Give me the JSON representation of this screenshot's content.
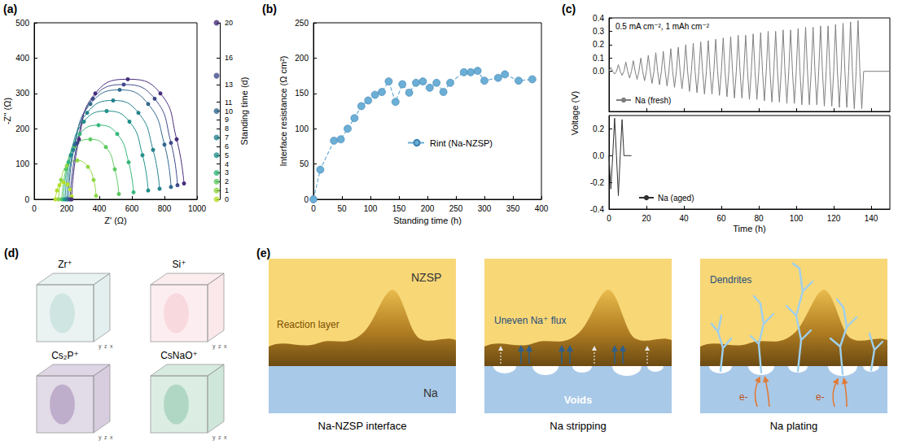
{
  "chart_data": [
    {
      "letter": "(a)",
      "type": "line",
      "x_label": "Z' (Ω)",
      "y_label": "-Z'' (Ω)",
      "z_label": "Standing time (d)",
      "xlim": [
        0,
        1000
      ],
      "xticks": [
        0,
        200,
        400,
        600,
        800,
        1000
      ],
      "ylim": [
        0,
        500
      ],
      "yticks": [
        0,
        100,
        200,
        300,
        400,
        500
      ],
      "zlim": [
        0,
        20
      ],
      "zticks": [
        0,
        1,
        2,
        3,
        4,
        5,
        6,
        7,
        8,
        9,
        10,
        11,
        13,
        16,
        20
      ],
      "marker": "circle",
      "series": [
        {
          "standing_time": 0,
          "color": "#b5de2b",
          "x": [
            130,
            140,
            155,
            180,
            205,
            220,
            230
          ],
          "values": [
            0,
            25,
            40,
            48,
            42,
            28,
            8
          ]
        },
        {
          "standing_time": 1,
          "color": "#8fd744",
          "x": [
            150,
            165,
            200,
            265,
            330,
            365,
            380
          ],
          "values": [
            0,
            55,
            95,
            110,
            92,
            55,
            10
          ]
        },
        {
          "standing_time": 2,
          "color": "#5ec962",
          "x": [
            170,
            195,
            250,
            345,
            440,
            495,
            520
          ],
          "values": [
            0,
            85,
            150,
            170,
            148,
            85,
            15
          ]
        },
        {
          "standing_time": 3,
          "color": "#35b779",
          "x": [
            180,
            210,
            280,
            395,
            510,
            580,
            610
          ],
          "values": [
            0,
            105,
            185,
            210,
            185,
            105,
            20
          ]
        },
        {
          "standing_time": 5,
          "color": "#21918c",
          "x": [
            190,
            225,
            305,
            445,
            585,
            665,
            700
          ],
          "values": [
            0,
            125,
            220,
            250,
            220,
            125,
            25
          ]
        },
        {
          "standing_time": 7,
          "color": "#26828e",
          "x": [
            200,
            240,
            325,
            485,
            640,
            730,
            770
          ],
          "values": [
            0,
            140,
            245,
            280,
            245,
            140,
            30
          ]
        },
        {
          "standing_time": 10,
          "color": "#31688e",
          "x": [
            210,
            250,
            345,
            525,
            700,
            800,
            840
          ],
          "values": [
            0,
            155,
            270,
            310,
            270,
            155,
            35
          ]
        },
        {
          "standing_time": 14,
          "color": "#3e4989",
          "x": [
            220,
            265,
            360,
            550,
            740,
            840,
            880
          ],
          "values": [
            0,
            160,
            285,
            325,
            285,
            160,
            40
          ]
        },
        {
          "standing_time": 20,
          "color": "#472d7b",
          "x": [
            230,
            275,
            375,
            575,
            775,
            875,
            920
          ],
          "values": [
            0,
            170,
            300,
            340,
            300,
            170,
            45
          ]
        }
      ]
    },
    {
      "letter": "(b)",
      "type": "line",
      "x_label": "Standing time (h)",
      "y_label": "Interface resistance (Ω cm²)",
      "xlim": [
        0,
        400
      ],
      "xticks": [
        0,
        50,
        100,
        150,
        200,
        250,
        300,
        350,
        400
      ],
      "ylim": [
        0,
        250
      ],
      "yticks": [
        0,
        50,
        100,
        150,
        200,
        250
      ],
      "marker": "circle",
      "line_style": "dashed",
      "legend": "lower right",
      "series": [
        {
          "name": "Rint (Na-NZSP)",
          "color": "#6baed6",
          "x": [
            0,
            12,
            36,
            48,
            60,
            72,
            84,
            96,
            108,
            120,
            132,
            144,
            156,
            168,
            180,
            192,
            204,
            216,
            228,
            240,
            264,
            276,
            288,
            300,
            324,
            336,
            360,
            384
          ],
          "values": [
            0,
            42,
            83,
            85,
            100,
            115,
            132,
            140,
            148,
            152,
            167,
            138,
            163,
            151,
            165,
            167,
            158,
            165,
            152,
            165,
            180,
            180,
            182,
            168,
            172,
            177,
            168,
            170
          ]
        }
      ]
    },
    {
      "letter": "(c)",
      "type": "line",
      "x_label": "Time (h)",
      "y_label": "Voltage (V)",
      "annotation": "0.5 mA cm⁻², 1 mAh cm⁻²",
      "xlim": [
        0,
        150
      ],
      "xticks": [
        0,
        20,
        40,
        60,
        80,
        100,
        120,
        140
      ],
      "legend": "lower left",
      "panels": [
        {
          "ylim": [
            -0.3,
            0.4
          ],
          "yticks": [
            {
              "value": 0,
              "label": "0.0"
            },
            0.1,
            0.2,
            0.3,
            0.4
          ],
          "tick_labels": "y",
          "series": [
            {
              "name": "Na (fresh)",
              "color": "#7f7f7f",
              "x": [
                0,
                1,
                2,
                3,
                4,
                5,
                6,
                7,
                8,
                9,
                10,
                11,
                12,
                13,
                14,
                15,
                16,
                17,
                18,
                19,
                20,
                21,
                22,
                23,
                24,
                25,
                26,
                27,
                28,
                29,
                30,
                31,
                32,
                33,
                34,
                35,
                36,
                37,
                38,
                39,
                40,
                41,
                42,
                43,
                44,
                45,
                46,
                47,
                48,
                49,
                50,
                51,
                52,
                53,
                54,
                55,
                56,
                57,
                58,
                59,
                60,
                61,
                62,
                63,
                64,
                65,
                66,
                67,
                68,
                69,
                70,
                71,
                72,
                73,
                74,
                75,
                76,
                77,
                78,
                79,
                80,
                81,
                82,
                83,
                84,
                85,
                86,
                87,
                88,
                89,
                90,
                91,
                92,
                93,
                94,
                95,
                96,
                97,
                98,
                99,
                100,
                101,
                102,
                103,
                104,
                105,
                106,
                107,
                108,
                109,
                110,
                111,
                112,
                113,
                114,
                115,
                116,
                117,
                118,
                119,
                120,
                121,
                122,
                123,
                124,
                125,
                126,
                127,
                128,
                129,
                130,
                131,
                132,
                133,
                134,
                135,
                136,
                140,
                150
              ],
              "values": [
                0,
                0.03,
                0,
                -0.02,
                0,
                0.05,
                0,
                -0.03,
                0,
                0.07,
                0,
                -0.05,
                0,
                0.08,
                0,
                -0.06,
                0,
                0.1,
                0,
                -0.07,
                0,
                0.12,
                0,
                -0.09,
                0,
                0.14,
                0,
                -0.1,
                0,
                0.15,
                0,
                -0.11,
                0,
                0.17,
                0,
                -0.12,
                0,
                0.18,
                0,
                -0.13,
                0,
                0.2,
                0,
                -0.15,
                0,
                0.21,
                0,
                -0.16,
                0,
                0.22,
                0,
                -0.17,
                0,
                0.23,
                0,
                -0.17,
                0,
                0.24,
                0,
                -0.18,
                0,
                0.25,
                0,
                -0.19,
                0,
                0.26,
                0,
                -0.2,
                0,
                0.27,
                0,
                -0.2,
                0,
                0.27,
                0,
                -0.21,
                0,
                0.28,
                0,
                -0.21,
                0,
                0.29,
                0,
                -0.22,
                0,
                0.3,
                0,
                -0.23,
                0,
                0.3,
                0,
                -0.23,
                0,
                0.31,
                0,
                -0.24,
                0,
                0.31,
                0,
                -0.24,
                0,
                0.32,
                0,
                -0.25,
                0,
                0.33,
                0,
                -0.25,
                0,
                0.33,
                0,
                -0.25,
                0,
                0.34,
                0,
                -0.26,
                0,
                0.34,
                0,
                -0.26,
                0,
                0.35,
                0,
                -0.27,
                0,
                0.36,
                0,
                -0.27,
                0,
                0.37,
                0,
                -0.28,
                0,
                0.38,
                0,
                -0.28,
                0,
                0,
                0
              ]
            }
          ]
        },
        {
          "ylim": [
            -0.4,
            0.3
          ],
          "yticks": [
            -0.4,
            -0.2,
            {
              "value": 0,
              "label": "0.0"
            },
            0.2
          ],
          "series": [
            {
              "name": "Na (aged)",
              "color": "#303030",
              "x": [
                0,
                1,
                2,
                3,
                4,
                5,
                6,
                7,
                8,
                12
              ],
              "values": [
                0,
                -0.25,
                0,
                0.28,
                0,
                -0.3,
                0,
                0.27,
                0,
                0
              ]
            }
          ]
        }
      ]
    }
  ],
  "tof_sims": {
    "letter": "(d)",
    "axis_labels": [
      "y",
      "z",
      "x"
    ],
    "cubes": [
      {
        "label": "Zr⁺",
        "color": "#9fcac6"
      },
      {
        "label": "Si⁺",
        "color": "#f0b3bc"
      },
      {
        "label": "Cs₂P⁺",
        "color": "#7a5a96"
      },
      {
        "label": "CsNaO⁺",
        "color": "#5fae86"
      }
    ]
  },
  "schematic": {
    "letter": "(e)",
    "panels": [
      {
        "caption": "Na-NZSP interface",
        "top_label": "NZSP",
        "layer_label": "Reaction layer",
        "bottom_label": "Na"
      },
      {
        "caption": "Na stripping",
        "flux_label": "Uneven Na⁺ flux",
        "void_label": "Voids"
      },
      {
        "caption": "Na plating",
        "dendrite_label": "Dendrites",
        "electron_label": "e-"
      }
    ]
  }
}
